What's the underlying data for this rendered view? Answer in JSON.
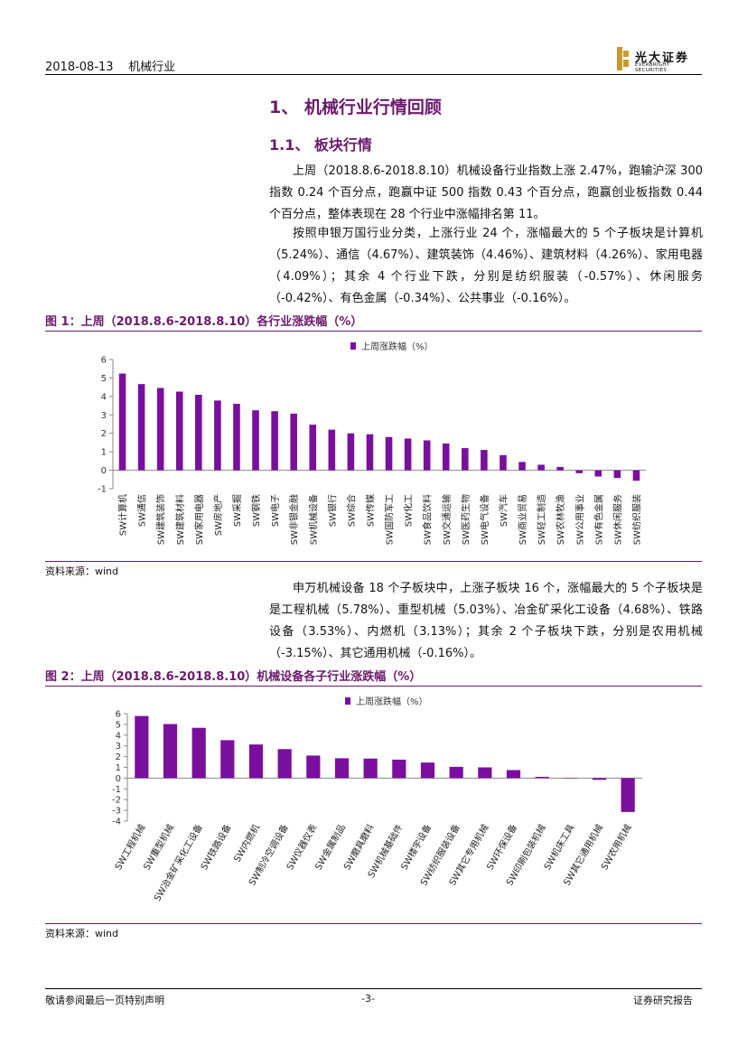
{
  "header": {
    "date": "2018-08-13",
    "industry": "机械行业",
    "logo_cn": "光大证券",
    "logo_en": "EVERBRIGHT SECURITIES"
  },
  "section": {
    "h1": "1、 机械行业行情回顾",
    "h2": "1.1、 板块行情"
  },
  "paragraphs": [
    "上周（2018.8.6-2018.8.10）机械设备行业指数上涨 2.47%，跑输沪深 300 指数 0.24 个百分点，跑赢中证 500 指数 0.43 个百分点，跑赢创业板指数 0.44 个百分点，整体表现在 28 个行业中涨幅排名第 11。",
    "按照申银万国行业分类，上涨行业 24 个，涨幅最大的 5 个子板块是计算机（5.24%）、通信（4.67%）、建筑装饰（4.46%）、建筑材料（4.26%）、家用电器（4.09%）；其余 4 个行业下跌，分别是纺织服装（-0.57%）、休闲服务（-0.42%）、有色金属（-0.34%）、公共事业（-0.16%）。",
    "申万机械设备 18 个子板块中，上涨子板块 16 个，涨幅最大的 5 个子板块是是工程机械（5.78%）、重型机械（5.03%）、冶金矿采化工设备（4.68%）、铁路设备（3.53%）、内燃机（3.13%）；其余 2 个子板块下跌，分别是农用机械（-3.15%）、其它通用机械（-0.16%）。"
  ],
  "figures": {
    "fig1_title": "图 1：上周（2018.8.6-2018.8.10）各行业涨跌幅（%）",
    "fig2_title": "图 2：上周（2018.8.6-2018.8.10）机械设备各子行业涨跌幅（%）",
    "source": "资料来源：wind"
  },
  "footer": {
    "disclaimer": "敬请参阅最后一页特别声明",
    "page": "-3-",
    "report_type": "证券研究报告"
  },
  "colors": {
    "bar": "#7a0f9e",
    "accent": "#6b1a6b"
  },
  "chart_data": [
    {
      "type": "bar",
      "legend": "上周涨跌幅（%）",
      "ylim": [
        -1,
        6
      ],
      "yticks": [
        -1,
        0,
        1,
        2,
        3,
        4,
        5,
        6
      ],
      "categories": [
        "SW计算机",
        "SW通信",
        "SW建筑装饰",
        "SW建筑材料",
        "SW家用电器",
        "SW房地产",
        "SW采掘",
        "SW钢铁",
        "SW电子",
        "SW非银金融",
        "SW机械设备",
        "SW银行",
        "SW综合",
        "SW传媒",
        "SW国防军工",
        "SW化工",
        "SW食品饮料",
        "SW交通运输",
        "SW医药生物",
        "SW电气设备",
        "SW汽车",
        "SW商业贸易",
        "SW轻工制造",
        "SW农林牧渔",
        "SW公用事业",
        "SW有色金属",
        "SW休闲服务",
        "SW纺织服装"
      ],
      "values": [
        5.24,
        4.67,
        4.46,
        4.26,
        4.09,
        3.78,
        3.6,
        3.25,
        3.2,
        3.07,
        2.47,
        2.2,
        2.0,
        1.95,
        1.8,
        1.72,
        1.62,
        1.45,
        1.2,
        1.1,
        0.82,
        0.45,
        0.3,
        0.18,
        -0.16,
        -0.34,
        -0.42,
        -0.57
      ]
    },
    {
      "type": "bar",
      "legend": "上周涨跌幅（%）",
      "ylim": [
        -4,
        6
      ],
      "yticks": [
        -4,
        -3,
        -2,
        -1,
        0,
        1,
        2,
        3,
        4,
        5,
        6
      ],
      "categories": [
        "SW工程机械",
        "SW重型机械",
        "SW冶金矿采化工设备",
        "SW铁路设备",
        "SW内燃机",
        "SW制冷空调设备",
        "SW仪器仪表",
        "SW金属制品",
        "SW磨具磨料",
        "SW机械基础件",
        "SW楼宇设备",
        "SW纺织服装设备",
        "SW其它专用机械",
        "SW环保设备",
        "SW印刷包装机械",
        "SW机床工具",
        "SW其它通用机械",
        "SW农用机械"
      ],
      "values": [
        5.78,
        5.03,
        4.68,
        3.53,
        3.13,
        2.7,
        2.1,
        1.85,
        1.82,
        1.72,
        1.45,
        1.05,
        1.0,
        0.75,
        0.12,
        0.02,
        -0.16,
        -3.15
      ]
    }
  ]
}
